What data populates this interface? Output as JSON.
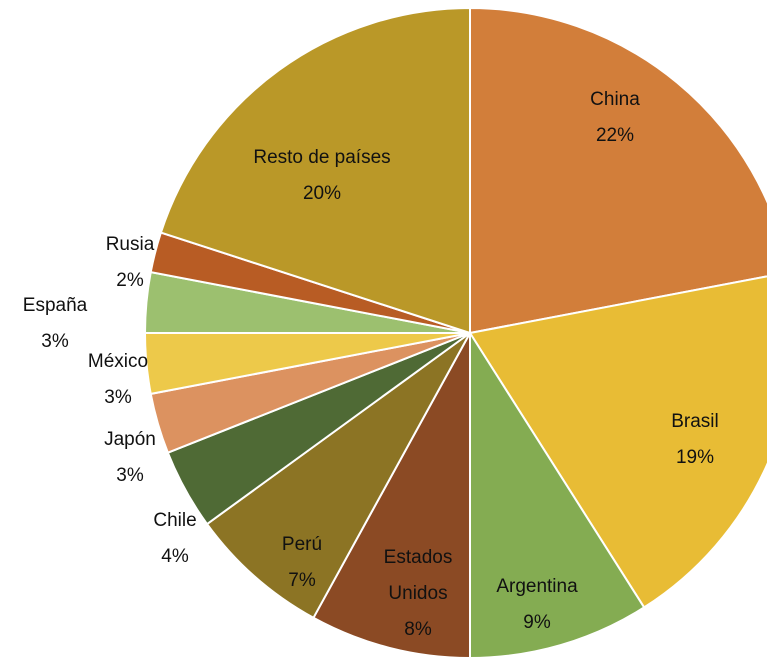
{
  "chart_data": {
    "type": "pie",
    "categories": [
      "China",
      "Brasil",
      "Argentina",
      "Estados Unidos",
      "Perú",
      "Chile",
      "Japón",
      "México",
      "España",
      "Rusia",
      "Resto de países"
    ],
    "values": [
      22,
      19,
      9,
      8,
      7,
      4,
      3,
      3,
      3,
      2,
      20
    ],
    "value_labels": [
      "22%",
      "19%",
      "9%",
      "8%",
      "7%",
      "4%",
      "3%",
      "3%",
      "3%",
      "2%",
      "20%"
    ],
    "colors": [
      "#D27E3A",
      "#E8BC35",
      "#84AC52",
      "#8B4A24",
      "#8C7424",
      "#4F6A35",
      "#DC9260",
      "#EDC94A",
      "#9CC06F",
      "#B85C24",
      "#BA9828"
    ]
  }
}
